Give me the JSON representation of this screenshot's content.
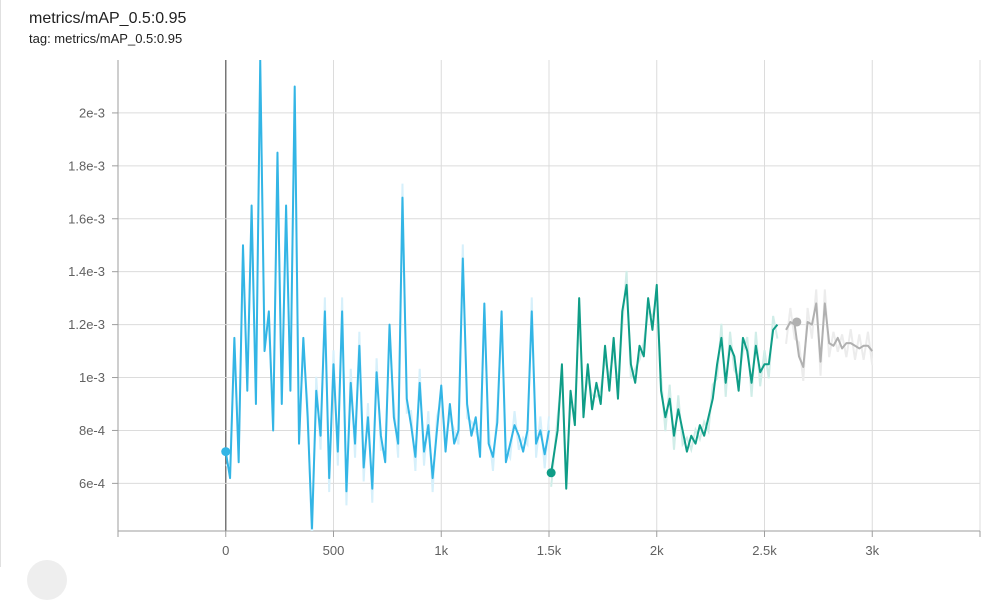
{
  "card": {
    "title": "metrics/mAP_0.5:0.95",
    "tag": "tag: metrics/mAP_0.5:0.95"
  },
  "chart_data": {
    "type": "line",
    "title": "metrics/mAP_0.5:0.95",
    "xlabel": "",
    "ylabel": "",
    "xlim": [
      -500,
      3500
    ],
    "ylim": [
      0.00042,
      0.0022
    ],
    "x_ticks": [
      0,
      500,
      1000,
      1500,
      2000,
      2500,
      3000
    ],
    "x_tick_labels": [
      "0",
      "500",
      "1k",
      "1.5k",
      "2k",
      "2.5k",
      "3k"
    ],
    "y_ticks": [
      0.0006,
      0.0008,
      0.001,
      0.0012,
      0.0014,
      0.0016,
      0.0018,
      0.002
    ],
    "y_tick_labels": [
      "6e-4",
      "8e-4",
      "1e-3",
      "1.2e-3",
      "1.4e-3",
      "1.6e-3",
      "1.8e-3",
      "2e-3"
    ],
    "grid": true,
    "series": [
      {
        "color": "#33b5e5",
        "raw_color": "#d6f0fb",
        "x": [
          0,
          20,
          40,
          60,
          80,
          100,
          120,
          140,
          160,
          180,
          200,
          220,
          240,
          260,
          280,
          300,
          320,
          340,
          360,
          380,
          400,
          420,
          440,
          460,
          480,
          500,
          520,
          540,
          560,
          580,
          600,
          620,
          640,
          660,
          680,
          700,
          720,
          740,
          760,
          780,
          800,
          820,
          840,
          860,
          880,
          900,
          920,
          940,
          960,
          980,
          1000,
          1020,
          1040,
          1060,
          1080,
          1100,
          1120,
          1140,
          1160,
          1180,
          1200,
          1220,
          1240,
          1260,
          1280,
          1300,
          1320,
          1340,
          1360,
          1380,
          1400,
          1420,
          1440,
          1460,
          1480,
          1500
        ],
        "y": [
          0.00072,
          0.00062,
          0.00115,
          0.00068,
          0.0015,
          0.00095,
          0.00165,
          0.0009,
          0.0022,
          0.0011,
          0.00125,
          0.0008,
          0.00185,
          0.0009,
          0.00165,
          0.00095,
          0.0021,
          0.00075,
          0.00115,
          0.00085,
          0.00043,
          0.00095,
          0.00078,
          0.00125,
          0.00062,
          0.00105,
          0.00072,
          0.00125,
          0.00057,
          0.00098,
          0.00075,
          0.00112,
          0.00066,
          0.00085,
          0.00058,
          0.00102,
          0.00078,
          0.00068,
          0.0012,
          0.00085,
          0.00075,
          0.00168,
          0.00092,
          0.00082,
          0.0007,
          0.00098,
          0.00072,
          0.00082,
          0.00062,
          0.0008,
          0.00097,
          0.00072,
          0.0009,
          0.00075,
          0.0008,
          0.00145,
          0.0009,
          0.00078,
          0.00085,
          0.0007,
          0.00128,
          0.00075,
          0.0007,
          0.00083,
          0.00125,
          0.00068,
          0.00075,
          0.00082,
          0.00078,
          0.00072,
          0.0008,
          0.00125,
          0.00075,
          0.0008,
          0.00071,
          0.0008
        ]
      },
      {
        "color": "#0f9d87",
        "raw_color": "#d0ede8",
        "x": [
          1510,
          1540,
          1560,
          1580,
          1600,
          1620,
          1640,
          1660,
          1680,
          1700,
          1720,
          1740,
          1760,
          1780,
          1800,
          1820,
          1840,
          1860,
          1880,
          1900,
          1920,
          1940,
          1960,
          1980,
          2000,
          2020,
          2040,
          2060,
          2080,
          2100,
          2120,
          2140,
          2160,
          2180,
          2200,
          2220,
          2240,
          2260,
          2280,
          2300,
          2320,
          2340,
          2360,
          2380,
          2400,
          2420,
          2440,
          2460,
          2480,
          2500,
          2520,
          2540,
          2560
        ],
        "y": [
          0.00064,
          0.0008,
          0.00105,
          0.00058,
          0.00095,
          0.00082,
          0.0013,
          0.00085,
          0.00105,
          0.00088,
          0.00098,
          0.0009,
          0.00112,
          0.00095,
          0.00115,
          0.00092,
          0.00125,
          0.00135,
          0.00105,
          0.00098,
          0.00112,
          0.00108,
          0.0013,
          0.00118,
          0.00135,
          0.00095,
          0.00085,
          0.00092,
          0.00078,
          0.00088,
          0.0008,
          0.00072,
          0.00078,
          0.00075,
          0.00082,
          0.00078,
          0.00085,
          0.00092,
          0.00105,
          0.00115,
          0.00098,
          0.00112,
          0.00108,
          0.00095,
          0.00115,
          0.0011,
          0.00098,
          0.00112,
          0.00102,
          0.00105,
          0.00105,
          0.00118,
          0.0012
        ]
      },
      {
        "color": "#b0b0b0",
        "raw_color": "#ececec",
        "x": [
          2600,
          2620,
          2640,
          2660,
          2680,
          2700,
          2720,
          2740,
          2760,
          2780,
          2800,
          2820,
          2840,
          2860,
          2880,
          2900,
          2920,
          2940,
          2960,
          2980,
          3000
        ],
        "y": [
          0.00118,
          0.00121,
          0.0012,
          0.00108,
          0.00104,
          0.00121,
          0.0012,
          0.00128,
          0.00106,
          0.00128,
          0.00113,
          0.00112,
          0.00115,
          0.00111,
          0.00113,
          0.00113,
          0.00112,
          0.00111,
          0.00112,
          0.00112,
          0.0011
        ]
      }
    ],
    "markers": [
      {
        "series": 0,
        "x": 0,
        "y": 0.00072
      },
      {
        "series": 1,
        "x": 1510,
        "y": 0.00064
      },
      {
        "series": 2,
        "x": 2650,
        "y": 0.00121
      }
    ]
  }
}
